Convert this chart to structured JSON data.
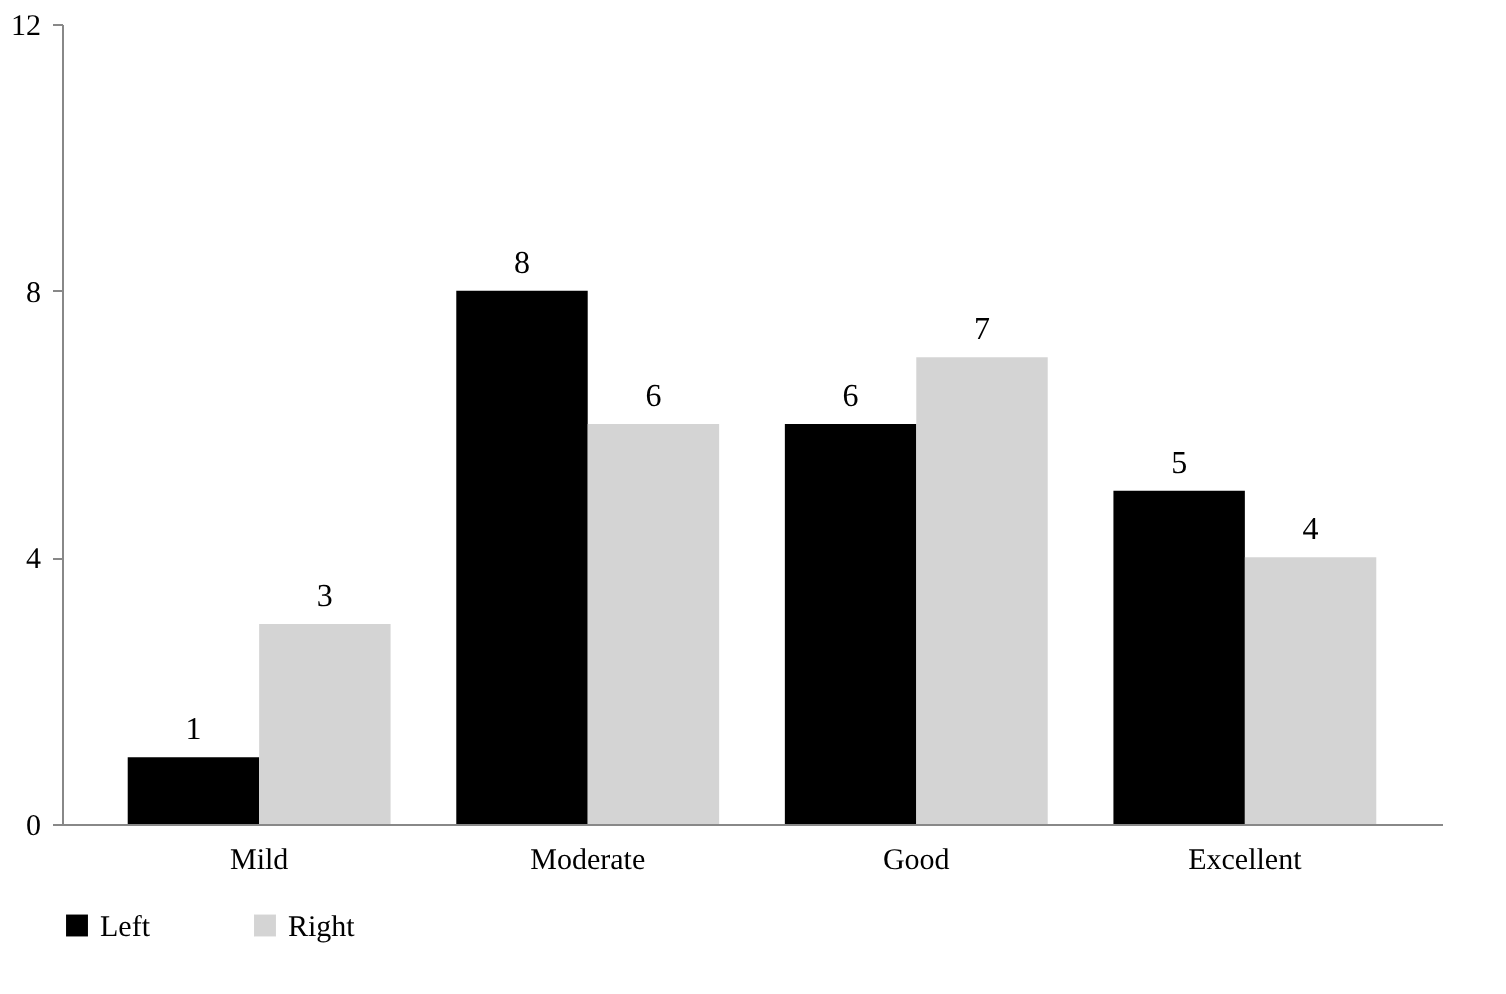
{
  "chart_data": {
    "type": "bar",
    "categories": [
      "Mild",
      "Moderate",
      "Good",
      "Excellent"
    ],
    "series": [
      {
        "name": "Left",
        "color": "#000000",
        "values": [
          1,
          8,
          6,
          5
        ]
      },
      {
        "name": "Right",
        "color": "#d4d4d4",
        "values": [
          3,
          6,
          7,
          4
        ]
      }
    ],
    "ylim": [
      0,
      12
    ],
    "yticks": [
      0,
      4,
      8,
      12
    ],
    "grid": false,
    "legend": "bottom",
    "data_labels": true
  }
}
